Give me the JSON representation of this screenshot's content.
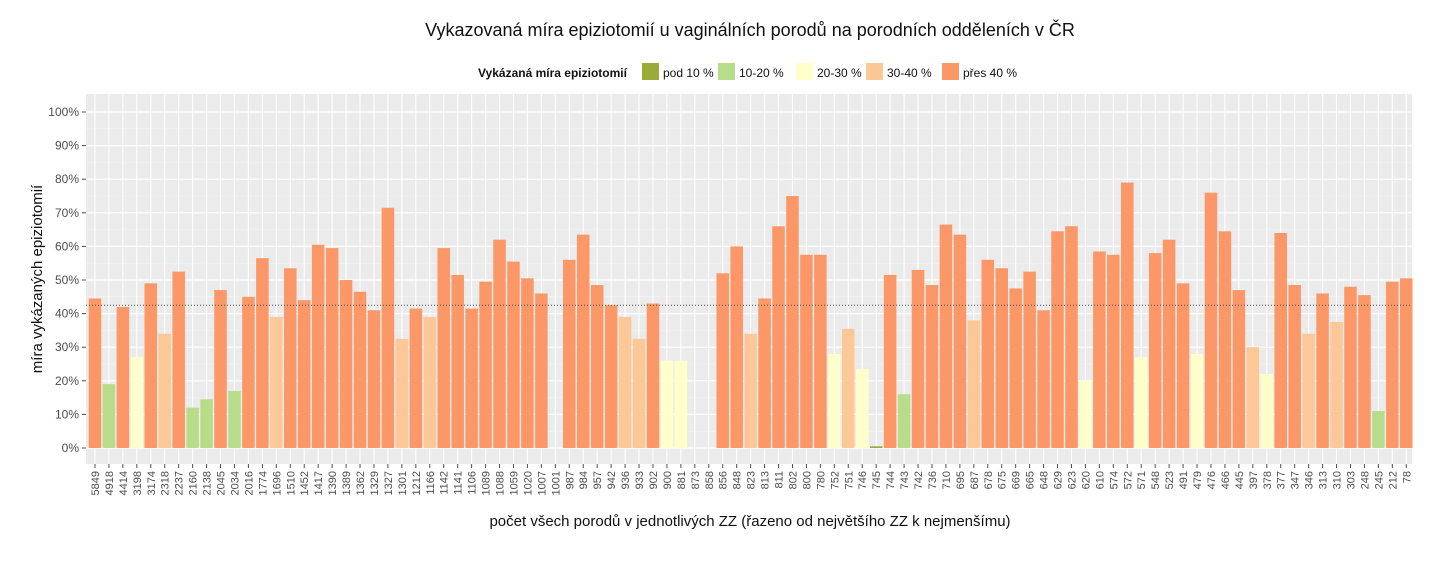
{
  "chart_data": {
    "type": "bar",
    "title": "Vykazovaná míra epiziotomií u vaginálních porodů na porodních odděleních v ČR",
    "xlabel": "počet všech porodů v jednotlivých ZZ (řazeno od největšího ZZ k nejmenšímu)",
    "ylabel": "míra vykázaných epiziotomií",
    "ylim": [
      0,
      100
    ],
    "yticks": [
      "0%",
      "10%",
      "20%",
      "30%",
      "40%",
      "50%",
      "60%",
      "70%",
      "80%",
      "90%",
      "100%"
    ],
    "reference_line": 42.5,
    "grid": true,
    "legend": {
      "position": "top",
      "title": "Vykázaná míra epiziotomií",
      "entries": [
        {
          "label": "pod 10 %",
          "color": "#9aab3a"
        },
        {
          "label": "10-20 %",
          "color": "#b8dd8a"
        },
        {
          "label": "20-30 %",
          "color": "#ffffcc"
        },
        {
          "label": "30-40 %",
          "color": "#fdc898"
        },
        {
          "label": "přes 40 %",
          "color": "#fc9868"
        }
      ]
    },
    "categories": [
      "5849",
      "4918",
      "4414",
      "3198",
      "3174",
      "2318",
      "2237",
      "2160",
      "2138",
      "2045",
      "2034",
      "2016",
      "1774",
      "1696",
      "1510",
      "1452",
      "1417",
      "1390",
      "1389",
      "1362",
      "1329",
      "1327",
      "1301",
      "1212",
      "1166",
      "1142",
      "1141",
      "1106",
      "1089",
      "1088",
      "1059",
      "1020",
      "1007",
      "1001",
      "987",
      "984",
      "957",
      "942",
      "936",
      "933",
      "902",
      "900",
      "881",
      "873",
      "858",
      "856",
      "848",
      "823",
      "813",
      "811",
      "802",
      "800",
      "780",
      "752",
      "751",
      "746",
      "745",
      "744",
      "743",
      "742",
      "736",
      "710",
      "695",
      "687",
      "678",
      "675",
      "669",
      "665",
      "648",
      "629",
      "623",
      "620",
      "610",
      "574",
      "572",
      "571",
      "548",
      "523",
      "491",
      "479",
      "476",
      "466",
      "445",
      "397",
      "378",
      "377",
      "347",
      "346",
      "313",
      "310",
      "303",
      "248",
      "245",
      "212",
      "78"
    ],
    "values": [
      44.5,
      19,
      42,
      27,
      49,
      34,
      52.5,
      12,
      14.5,
      47,
      17,
      45,
      56.5,
      39,
      53.5,
      44,
      60.5,
      59.5,
      50,
      46.5,
      41,
      71.5,
      32.5,
      41.5,
      39,
      59.5,
      51.5,
      41.5,
      49.5,
      62,
      55.5,
      50.5,
      46,
      null,
      56,
      63.5,
      48.5,
      42.5,
      39,
      32.5,
      43,
      26,
      26,
      null,
      null,
      52,
      60,
      34,
      44.5,
      66,
      75,
      57.5,
      57.5,
      28,
      35.5,
      23.5,
      0.5,
      51.5,
      16,
      53,
      48.5,
      66.5,
      63.5,
      38,
      56,
      53.5,
      47.5,
      52.5,
      41,
      64.5,
      66,
      20,
      58.5,
      57.5,
      79,
      27,
      58,
      62,
      49,
      28,
      76,
      64.5,
      47,
      30,
      22,
      64,
      48.5,
      34,
      46,
      37.5,
      48,
      45.5,
      11,
      49.5,
      50.5
    ]
  }
}
